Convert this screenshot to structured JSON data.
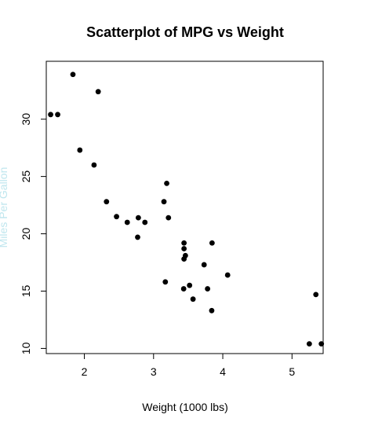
{
  "chart_data": {
    "type": "scatter",
    "title": "Scatterplot of MPG vs Weight",
    "xlabel": "Weight (1000 lbs)",
    "ylabel": "Miles Per Gallon",
    "xlim": [
      1.45,
      5.45
    ],
    "ylim": [
      9.55,
      35.05
    ],
    "xticks": [
      2,
      3,
      4,
      5
    ],
    "yticks": [
      10,
      15,
      20,
      25,
      30
    ],
    "grid": false,
    "points": [
      {
        "x": 1.835,
        "y": 33.9
      },
      {
        "x": 2.2,
        "y": 32.4
      },
      {
        "x": 1.513,
        "y": 30.4
      },
      {
        "x": 1.615,
        "y": 30.4
      },
      {
        "x": 1.935,
        "y": 27.3
      },
      {
        "x": 2.14,
        "y": 26.0
      },
      {
        "x": 3.19,
        "y": 24.4
      },
      {
        "x": 2.32,
        "y": 22.8
      },
      {
        "x": 3.15,
        "y": 22.8
      },
      {
        "x": 2.465,
        "y": 21.5
      },
      {
        "x": 2.78,
        "y": 21.4
      },
      {
        "x": 3.215,
        "y": 21.4
      },
      {
        "x": 2.62,
        "y": 21.0
      },
      {
        "x": 2.875,
        "y": 21.0
      },
      {
        "x": 2.77,
        "y": 19.7
      },
      {
        "x": 3.44,
        "y": 19.2
      },
      {
        "x": 3.845,
        "y": 19.2
      },
      {
        "x": 3.44,
        "y": 18.7
      },
      {
        "x": 3.46,
        "y": 18.1
      },
      {
        "x": 3.44,
        "y": 17.8
      },
      {
        "x": 3.73,
        "y": 17.3
      },
      {
        "x": 4.07,
        "y": 16.4
      },
      {
        "x": 3.17,
        "y": 15.8
      },
      {
        "x": 3.52,
        "y": 15.5
      },
      {
        "x": 3.435,
        "y": 15.2
      },
      {
        "x": 3.78,
        "y": 15.2
      },
      {
        "x": 5.345,
        "y": 14.7
      },
      {
        "x": 3.57,
        "y": 14.3
      },
      {
        "x": 3.84,
        "y": 13.3
      },
      {
        "x": 5.25,
        "y": 10.4
      },
      {
        "x": 5.424,
        "y": 10.4
      }
    ]
  }
}
